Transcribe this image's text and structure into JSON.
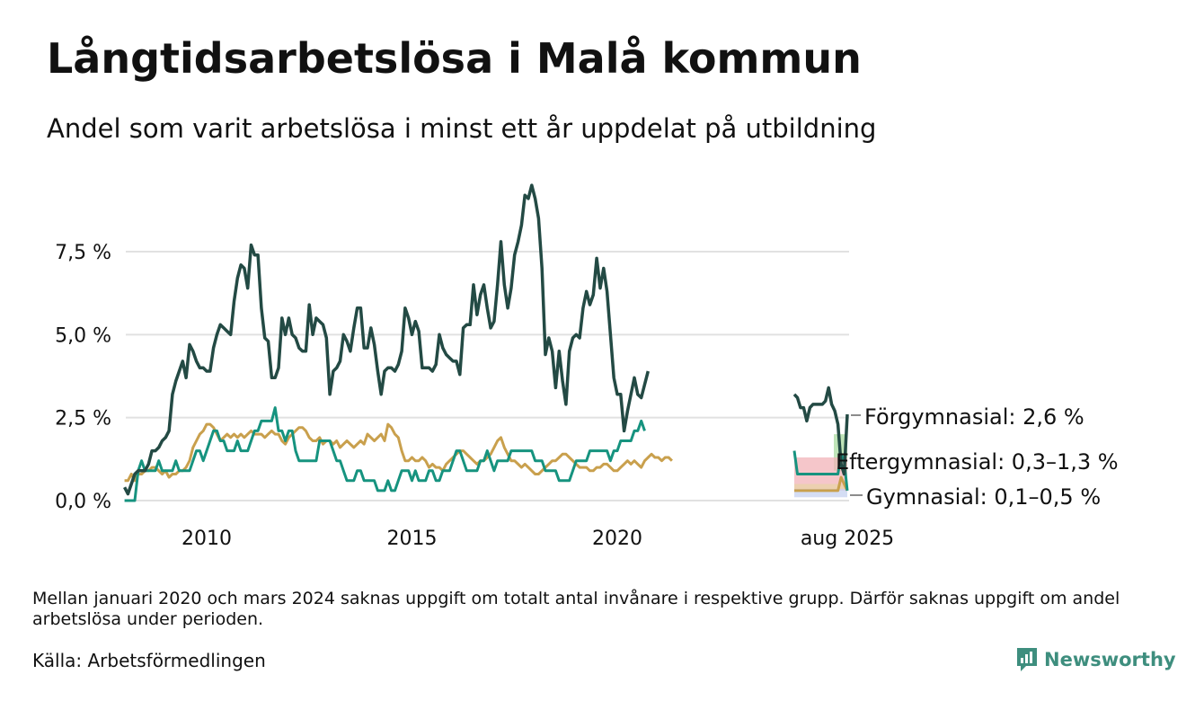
{
  "header": {
    "title": "Långtidsarbetslösa i Malå kommun",
    "subtitle": "Andel som varit arbetslösa i minst ett år uppdelat på utbildning"
  },
  "footer": {
    "note": "Mellan januari 2020 och mars 2024 saknas uppgift om totalt antal invånare i respektive grupp. Därför saknas uppgift om andel arbetslösa under perioden.",
    "source": "Källa: Arbetsförmedlingen",
    "brand": "Newsworthy"
  },
  "colors": {
    "forgymnasial": "#234a44",
    "eftergymnasial": "#16937f",
    "gymnasial": "#c9a04d",
    "grid": "#e1e1e1",
    "band_green": "#a9dba0",
    "band_red": "#f2b3b8",
    "band_blue": "#c5d2f0",
    "band_peach": "#f2cfa3"
  },
  "chart_data": {
    "type": "line",
    "ylim": [
      0,
      9.6
    ],
    "yticks": [
      {
        "value": 0,
        "label": "0,0 %"
      },
      {
        "value": 2.5,
        "label": "2,5 %"
      },
      {
        "value": 5,
        "label": "5,0 %"
      },
      {
        "value": 7.5,
        "label": "7,5 %"
      }
    ],
    "xticks": [
      {
        "value": 2010,
        "label": "2010"
      },
      {
        "value": 2015,
        "label": "2015"
      },
      {
        "value": 2020,
        "label": "2020"
      }
    ],
    "inset_label": "aug 2025",
    "end_labels": {
      "forgymnasial": "Förgymnasial: 2,6 %",
      "eftergymnasial": "Eftergymnasial: 0,3–1,3 %",
      "gymnasial": "Gymnasial: 0,1–0,5 %"
    },
    "bands": [
      {
        "name": "forgymnasial",
        "low": 0.9,
        "high": 2.0
      },
      {
        "name": "eftergymnasial",
        "low": 0.3,
        "high": 1.3
      },
      {
        "name": "gymnasial",
        "low": 0.1,
        "high": 0.5
      }
    ],
    "main_x_start": 2008.0,
    "main_x_step": 0.0833333,
    "series": [
      {
        "key": "forgymnasial",
        "values": [
          0.4,
          0.2,
          0.5,
          0.8,
          0.9,
          0.9,
          0.9,
          1.1,
          1.5,
          1.5,
          1.6,
          1.8,
          1.9,
          2.1,
          3.2,
          3.6,
          3.9,
          4.2,
          3.7,
          4.7,
          4.5,
          4.2,
          4.0,
          4.0,
          3.9,
          3.9,
          4.6,
          5.0,
          5.3,
          5.2,
          5.1,
          5.0,
          6.0,
          6.7,
          7.1,
          7.0,
          6.4,
          7.7,
          7.4,
          7.4,
          5.8,
          4.9,
          4.8,
          3.7,
          3.7,
          4.0,
          5.5,
          5.0,
          5.5,
          5.0,
          4.9,
          4.6,
          4.5,
          4.5,
          5.9,
          5.0,
          5.5,
          5.4,
          5.3,
          4.9,
          3.2,
          3.9,
          4.0,
          4.2,
          5.0,
          4.8,
          4.5,
          5.2,
          5.8,
          5.8,
          4.6,
          4.6,
          5.2,
          4.7,
          3.9,
          3.2,
          3.9,
          4.0,
          4.0,
          3.9,
          4.1,
          4.5,
          5.8,
          5.5,
          5.0,
          5.4,
          5.1,
          4.0,
          4.0,
          4.0,
          3.9,
          4.1,
          5.0,
          4.6,
          4.4,
          4.3,
          4.2,
          4.2,
          3.8,
          5.2,
          5.3,
          5.3,
          6.5,
          5.6,
          6.2,
          6.5,
          5.8,
          5.2,
          5.4,
          6.5,
          7.8,
          6.5,
          5.8,
          6.4,
          7.4,
          7.8,
          8.3,
          9.2,
          9.1,
          9.5,
          9.1,
          8.5,
          7.0,
          4.4,
          4.9,
          4.5,
          3.4,
          4.5,
          3.6,
          2.9,
          4.5,
          4.9,
          5.0,
          4.9,
          5.8,
          6.3,
          5.9,
          6.2,
          7.3,
          6.4,
          7.0,
          6.3,
          5.0,
          3.7,
          3.2,
          3.2,
          2.1,
          2.7,
          3.2,
          3.7,
          3.2,
          3.1,
          3.5,
          3.9
        ]
      },
      {
        "key": "eftergymnasial",
        "values": [
          0.0,
          0.0,
          0.0,
          0.0,
          0.9,
          1.2,
          0.9,
          0.9,
          0.9,
          0.9,
          1.2,
          0.9,
          0.9,
          0.9,
          0.9,
          1.2,
          0.9,
          0.9,
          0.9,
          0.9,
          1.2,
          1.5,
          1.5,
          1.2,
          1.5,
          1.8,
          2.1,
          2.1,
          1.8,
          1.8,
          1.5,
          1.5,
          1.5,
          1.8,
          1.5,
          1.5,
          1.5,
          1.8,
          2.1,
          2.1,
          2.4,
          2.4,
          2.4,
          2.4,
          2.8,
          2.1,
          2.1,
          1.8,
          2.1,
          2.1,
          1.5,
          1.2,
          1.2,
          1.2,
          1.2,
          1.2,
          1.2,
          1.8,
          1.8,
          1.8,
          1.8,
          1.5,
          1.2,
          1.2,
          0.9,
          0.6,
          0.6,
          0.6,
          0.9,
          0.9,
          0.6,
          0.6,
          0.6,
          0.6,
          0.3,
          0.3,
          0.3,
          0.6,
          0.3,
          0.3,
          0.6,
          0.9,
          0.9,
          0.9,
          0.6,
          0.9,
          0.6,
          0.6,
          0.6,
          0.9,
          0.9,
          0.6,
          0.6,
          0.9,
          0.9,
          0.9,
          1.2,
          1.5,
          1.5,
          1.2,
          0.9,
          0.9,
          0.9,
          0.9,
          1.2,
          1.2,
          1.5,
          1.2,
          0.9,
          1.2,
          1.2,
          1.2,
          1.2,
          1.5,
          1.5,
          1.5,
          1.5,
          1.5,
          1.5,
          1.5,
          1.2,
          1.2,
          1.2,
          0.9,
          0.9,
          0.9,
          0.9,
          0.6,
          0.6,
          0.6,
          0.6,
          0.9,
          1.2,
          1.2,
          1.2,
          1.2,
          1.5,
          1.5,
          1.5,
          1.5,
          1.5,
          1.5,
          1.2,
          1.5,
          1.5,
          1.8,
          1.8,
          1.8,
          1.8,
          2.1,
          2.1,
          2.4,
          2.1
        ]
      },
      {
        "key": "gymnasial",
        "values": [
          0.6,
          0.6,
          0.8,
          0.6,
          0.8,
          0.8,
          0.9,
          0.9,
          1.0,
          1.0,
          0.9,
          0.8,
          0.9,
          0.7,
          0.8,
          0.8,
          0.9,
          0.9,
          1.0,
          1.2,
          1.6,
          1.8,
          2.0,
          2.1,
          2.3,
          2.3,
          2.2,
          2.0,
          1.8,
          1.9,
          2.0,
          1.9,
          2.0,
          1.9,
          2.0,
          1.9,
          2.0,
          2.1,
          2.0,
          2.0,
          2.0,
          1.9,
          2.0,
          2.1,
          2.0,
          2.0,
          1.8,
          1.7,
          1.9,
          2.0,
          2.1,
          2.2,
          2.2,
          2.1,
          1.9,
          1.8,
          1.8,
          1.9,
          1.7,
          1.8,
          1.8,
          1.7,
          1.8,
          1.6,
          1.7,
          1.8,
          1.7,
          1.6,
          1.7,
          1.8,
          1.7,
          2.0,
          1.9,
          1.8,
          1.9,
          2.0,
          1.8,
          2.3,
          2.2,
          2.0,
          1.9,
          1.5,
          1.2,
          1.2,
          1.3,
          1.2,
          1.2,
          1.3,
          1.2,
          1.0,
          1.1,
          1.0,
          1.0,
          0.9,
          1.1,
          1.2,
          1.3,
          1.4,
          1.5,
          1.5,
          1.4,
          1.3,
          1.2,
          1.1,
          1.2,
          1.2,
          1.3,
          1.4,
          1.6,
          1.8,
          1.9,
          1.6,
          1.4,
          1.2,
          1.2,
          1.1,
          1.0,
          1.1,
          1.0,
          0.9,
          0.8,
          0.8,
          0.9,
          1.0,
          1.1,
          1.2,
          1.2,
          1.3,
          1.4,
          1.4,
          1.3,
          1.2,
          1.1,
          1.0,
          1.0,
          1.0,
          0.9,
          0.9,
          1.0,
          1.0,
          1.1,
          1.1,
          1.0,
          0.9,
          0.9,
          1.0,
          1.1,
          1.2,
          1.1,
          1.2,
          1.1,
          1.0,
          1.2,
          1.3,
          1.4,
          1.3,
          1.3,
          1.2,
          1.3,
          1.3,
          1.2
        ]
      }
    ],
    "inset_series": [
      {
        "key": "forgymnasial",
        "values": [
          3.2,
          3.1,
          2.8,
          2.8,
          2.4,
          2.8,
          2.9,
          2.9,
          2.9,
          2.9,
          3.0,
          3.4,
          2.9,
          2.7,
          2.3,
          1.1,
          0.8,
          2.6
        ]
      },
      {
        "key": "eftergymnasial",
        "values": [
          1.5,
          0.8,
          0.8,
          0.8,
          0.8,
          0.8,
          0.8,
          0.8,
          0.8,
          0.8,
          0.8,
          0.8,
          0.8,
          0.8,
          0.8,
          1.4,
          1.2,
          0.3
        ]
      },
      {
        "key": "gymnasial",
        "values": [
          0.3,
          0.3,
          0.3,
          0.3,
          0.3,
          0.3,
          0.3,
          0.3,
          0.3,
          0.3,
          0.3,
          0.3,
          0.3,
          0.3,
          0.3,
          0.7,
          0.5,
          0.3
        ]
      }
    ]
  }
}
